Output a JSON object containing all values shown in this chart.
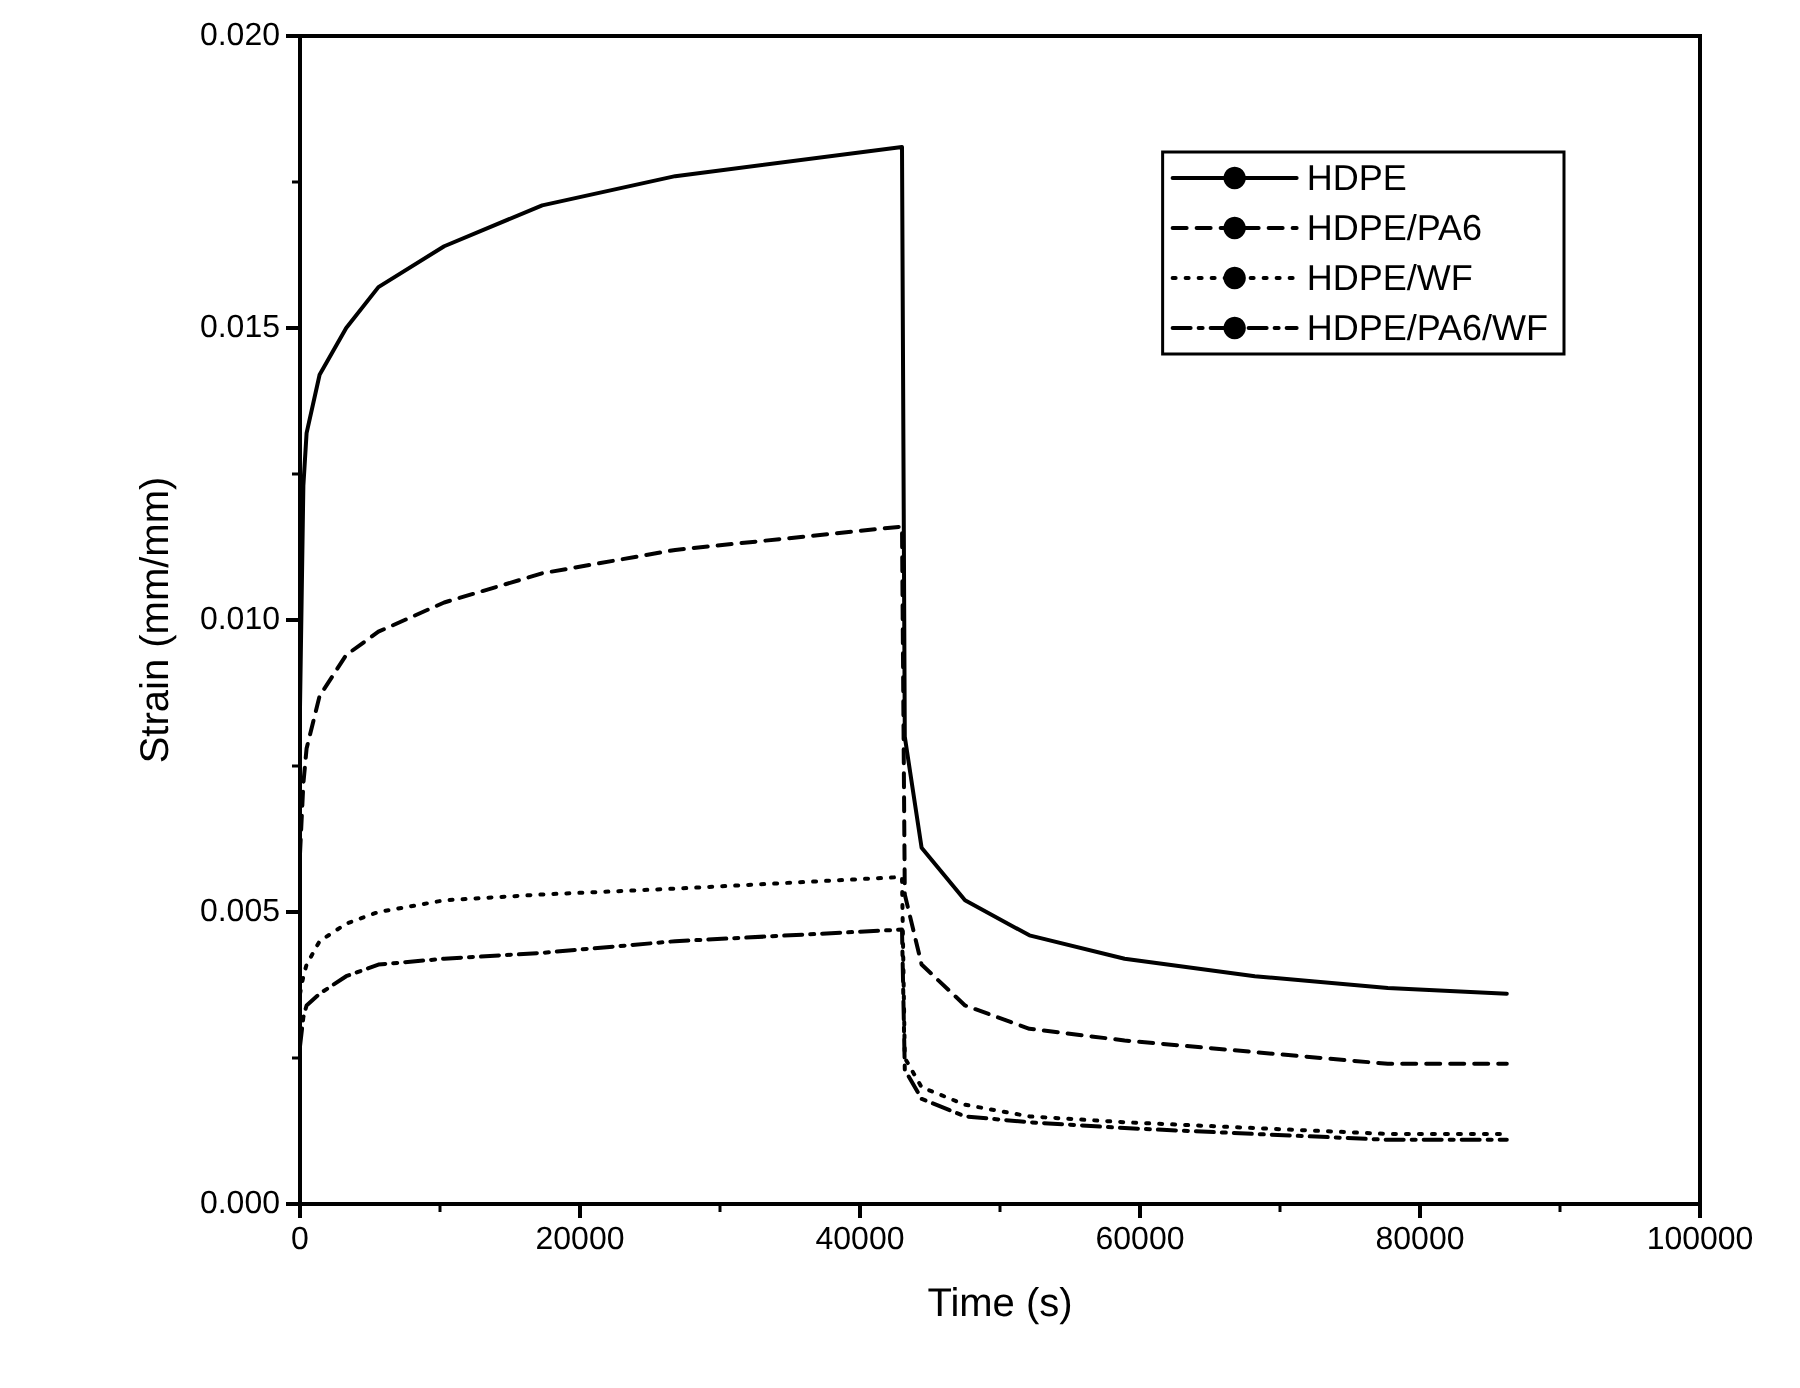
{
  "chart_data": {
    "type": "line",
    "xlabel": "Time (s)",
    "ylabel": "Strain (mm/mm)",
    "xlim": [
      0,
      100000
    ],
    "xticks": [
      0,
      20000,
      40000,
      60000,
      80000,
      100000
    ],
    "ylim": [
      0,
      0.02
    ],
    "yticks": [
      {
        "value": 0,
        "label": "0.000"
      },
      {
        "value": 0.005,
        "label": "0.005"
      },
      {
        "value": 0.01,
        "label": "0.010"
      },
      {
        "value": 0.015,
        "label": "0.015"
      },
      {
        "value": 0.02,
        "label": "0.020"
      }
    ],
    "grid": false,
    "legend": "top right",
    "marker": "none",
    "x": [
      0,
      240,
      470,
      1400,
      3300,
      5600,
      10300,
      17300,
      26800,
      43000,
      43200,
      44400,
      47500,
      52100,
      58900,
      68200,
      77700,
      86200
    ],
    "series": [
      {
        "name": "HDPE",
        "color": "#000000",
        "line_style": "solid",
        "values": [
          0.0085,
          0.0123,
          0.0132,
          0.0142,
          0.015,
          0.0157,
          0.0164,
          0.0171,
          0.0176,
          0.0181,
          0.008,
          0.0061,
          0.0052,
          0.0046,
          0.0042,
          0.0039,
          0.0037,
          0.0036
        ]
      },
      {
        "name": "HDPE/PA6",
        "color": "#000000",
        "line_style": "dashed",
        "values": [
          0.006,
          0.0072,
          0.0078,
          0.0087,
          0.0094,
          0.0098,
          0.0103,
          0.0108,
          0.0112,
          0.0116,
          0.0053,
          0.0041,
          0.0034,
          0.003,
          0.0028,
          0.0026,
          0.0024,
          0.0024
        ]
      },
      {
        "name": "HDPE/WF",
        "color": "#000000",
        "line_style": "dotted",
        "values": [
          0.0036,
          0.0039,
          0.0041,
          0.0045,
          0.0048,
          0.005,
          0.0052,
          0.0053,
          0.0054,
          0.0056,
          0.0025,
          0.002,
          0.0017,
          0.0015,
          0.0014,
          0.0013,
          0.0012,
          0.0012
        ]
      },
      {
        "name": "HDPE/PA6/WF",
        "color": "#000000",
        "line_style": "dashdot",
        "values": [
          0.0027,
          0.0032,
          0.0034,
          0.0036,
          0.0039,
          0.0041,
          0.0042,
          0.0043,
          0.0045,
          0.0047,
          0.0023,
          0.0018,
          0.0015,
          0.0014,
          0.0013,
          0.0012,
          0.0011,
          0.0011
        ]
      }
    ]
  }
}
